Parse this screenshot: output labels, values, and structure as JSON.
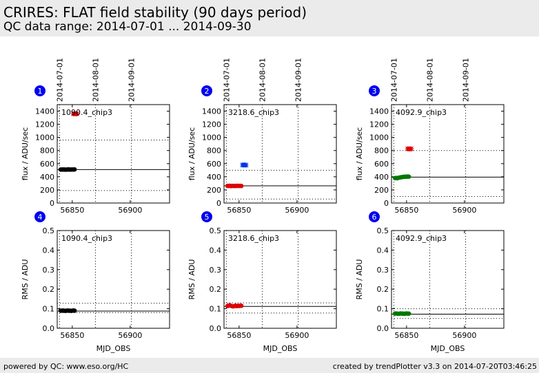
{
  "header": {
    "title": "CRIRES: FLAT field stability (90 days period)",
    "subtitle": "QC data range: 2014-07-01 ... 2014-09-30"
  },
  "footer": {
    "left": "powered by QC: www.eso.org/HC",
    "right": "created by trendPlotter v3.3 on 2014-07-20T03:46:25"
  },
  "top_date_ticks": [
    "2014-07-01",
    "2014-08-01",
    "2014-09-01"
  ],
  "colors": {
    "black": "#000000",
    "red": "#dd0000",
    "blue": "#0033ee",
    "green": "#007700",
    "badge": "#0000ee"
  },
  "chart_data": [
    {
      "panel": "1",
      "type": "scatter",
      "annotation": "1090.4_chip3",
      "ylabel": "flux / ADU/sec",
      "xlim": [
        56837,
        56934
      ],
      "ylim": [
        0,
        1500
      ],
      "yticks": [
        0,
        200,
        400,
        600,
        800,
        1000,
        1200,
        1400
      ],
      "xticks": [
        56850,
        56900
      ],
      "xticks_labeled": true,
      "vlines": [
        56839,
        56870,
        56901
      ],
      "reference": 510,
      "limits": [
        190,
        960
      ],
      "series": [
        {
          "color": "#000000",
          "marker": "dot",
          "x": [
            56840,
            56841,
            56842,
            56843,
            56844,
            56845,
            56846,
            56847,
            56848,
            56849,
            56850,
            56851,
            56852
          ],
          "y": [
            510,
            510,
            510,
            512,
            508,
            510,
            510,
            513,
            509,
            510,
            511,
            510,
            512
          ]
        },
        {
          "color": "#dd0000",
          "marker": "star",
          "x": [
            56851,
            56852,
            56853,
            56854
          ],
          "y": [
            1360,
            1362,
            1358,
            1360
          ]
        }
      ]
    },
    {
      "panel": "2",
      "type": "scatter",
      "annotation": "3218.6_chip3",
      "ylabel": "flux / ADU/sec",
      "xlim": [
        56837,
        56934
      ],
      "ylim": [
        0,
        1500
      ],
      "yticks": [
        0,
        200,
        400,
        600,
        800,
        1000,
        1200,
        1400
      ],
      "xticks": [
        56850,
        56900
      ],
      "xticks_labeled": true,
      "vlines": [
        56839,
        56870,
        56901
      ],
      "reference": 262,
      "limits": [
        60,
        500
      ],
      "series": [
        {
          "color": "#dd0000",
          "marker": "dot",
          "x": [
            56840,
            56841,
            56842,
            56843,
            56844,
            56845,
            56846,
            56847,
            56848,
            56849,
            56850,
            56851,
            56852
          ],
          "y": [
            262,
            260,
            263,
            258,
            261,
            262,
            259,
            262,
            260,
            263,
            261,
            262,
            260
          ]
        },
        {
          "color": "#0033ee",
          "marker": "star",
          "x": [
            56853,
            56854,
            56855,
            56856
          ],
          "y": [
            580,
            578,
            582,
            576
          ]
        }
      ]
    },
    {
      "panel": "3",
      "type": "scatter",
      "annotation": "4092.9_chip3",
      "ylabel": "flux / ADU/sec",
      "xlim": [
        56837,
        56934
      ],
      "ylim": [
        0,
        1500
      ],
      "yticks": [
        0,
        200,
        400,
        600,
        800,
        1000,
        1200,
        1400
      ],
      "xticks": [
        56850,
        56900
      ],
      "xticks_labeled": true,
      "vlines": [
        56839,
        56870,
        56901
      ],
      "reference": 395,
      "limits": [
        100,
        800
      ],
      "series": [
        {
          "color": "#007700",
          "marker": "dot",
          "x": [
            56840,
            56841,
            56842,
            56843,
            56844,
            56845,
            56846,
            56847,
            56848,
            56849,
            56850,
            56851,
            56852
          ],
          "y": [
            380,
            382,
            378,
            385,
            388,
            392,
            395,
            398,
            400,
            402,
            400,
            405,
            402
          ]
        },
        {
          "color": "#dd0000",
          "marker": "star",
          "x": [
            56851,
            56852,
            56853,
            56854
          ],
          "y": [
            825,
            828,
            822,
            826
          ]
        }
      ]
    },
    {
      "panel": "4",
      "type": "scatter",
      "annotation": "1090.4_chip3",
      "ylabel": "RMS / ADU",
      "xlabel": "MJD_OBS",
      "xlim": [
        56837,
        56934
      ],
      "ylim": [
        0,
        0.5
      ],
      "yticks": [
        0.0,
        0.1,
        0.2,
        0.3,
        0.4,
        0.5
      ],
      "xticks": [
        56850,
        56900
      ],
      "xticks_labeled": true,
      "vlines": [
        56839,
        56870,
        56901
      ],
      "reference": 0.088,
      "limits": [
        0.08,
        0.128
      ],
      "series": [
        {
          "color": "#000000",
          "marker": "dot",
          "x": [
            56840,
            56841,
            56842,
            56843,
            56844,
            56845,
            56846,
            56847,
            56848,
            56849,
            56850,
            56851,
            56852
          ],
          "y": [
            0.09,
            0.09,
            0.091,
            0.09,
            0.089,
            0.09,
            0.091,
            0.09,
            0.09,
            0.089,
            0.09,
            0.091,
            0.09
          ]
        }
      ]
    },
    {
      "panel": "5",
      "type": "scatter",
      "annotation": "3218.6_chip3",
      "ylabel": "RMS / ADU",
      "xlabel": "MJD_OBS",
      "xlim": [
        56837,
        56934
      ],
      "ylim": [
        0,
        0.5
      ],
      "yticks": [
        0.0,
        0.1,
        0.2,
        0.3,
        0.4,
        0.5
      ],
      "xticks": [
        56850,
        56900
      ],
      "xticks_labeled": true,
      "vlines": [
        56839,
        56870,
        56901
      ],
      "reference": 0.112,
      "limits": [
        0.078,
        0.13
      ],
      "series": [
        {
          "color": "#dd0000",
          "marker": "dot",
          "x": [
            56840,
            56841,
            56842,
            56843,
            56844,
            56845,
            56846,
            56847,
            56848,
            56849,
            56850,
            56851,
            56852
          ],
          "y": [
            0.114,
            0.116,
            0.118,
            0.115,
            0.113,
            0.112,
            0.114,
            0.116,
            0.113,
            0.115,
            0.114,
            0.116,
            0.115
          ]
        }
      ]
    },
    {
      "panel": "6",
      "type": "scatter",
      "annotation": "4092.9_chip3",
      "ylabel": "RMS / ADU",
      "xlabel": "MJD_OBS",
      "xlim": [
        56837,
        56934
      ],
      "ylim": [
        0,
        0.5
      ],
      "yticks": [
        0.0,
        0.1,
        0.2,
        0.3,
        0.4,
        0.5
      ],
      "xticks": [
        56850,
        56900
      ],
      "xticks_labeled": true,
      "vlines": [
        56839,
        56870,
        56901
      ],
      "reference": 0.072,
      "limits": [
        0.05,
        0.1
      ],
      "series": [
        {
          "color": "#007700",
          "marker": "dot",
          "x": [
            56840,
            56841,
            56842,
            56843,
            56844,
            56845,
            56846,
            56847,
            56848,
            56849,
            56850,
            56851,
            56852
          ],
          "y": [
            0.075,
            0.076,
            0.075,
            0.074,
            0.075,
            0.076,
            0.075,
            0.075,
            0.074,
            0.075,
            0.076,
            0.075,
            0.075
          ]
        }
      ]
    }
  ]
}
